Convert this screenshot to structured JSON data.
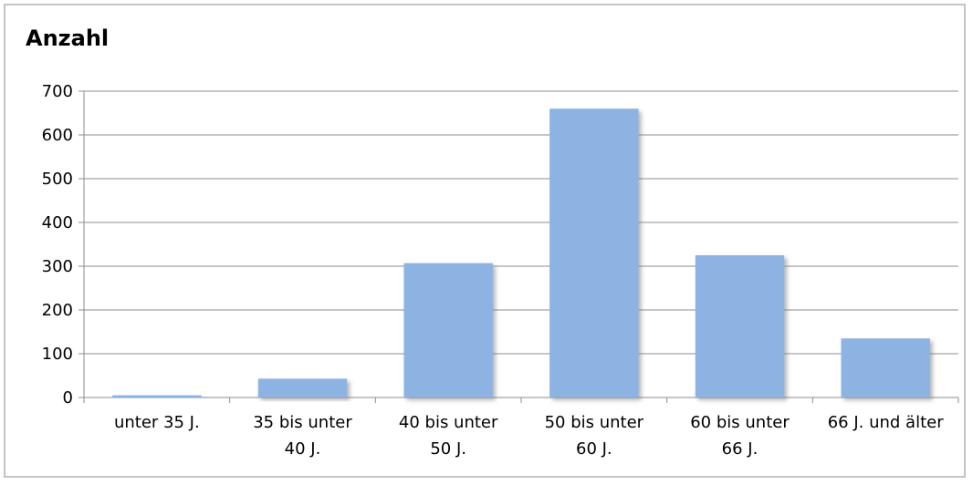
{
  "chart_data": {
    "type": "bar",
    "title": "Anzahl",
    "categories": [
      [
        "unter 35 J."
      ],
      [
        "35 bis unter",
        "40 J."
      ],
      [
        "40 bis unter",
        "50 J."
      ],
      [
        "50 bis unter",
        "60 J."
      ],
      [
        "60 bis unter",
        "66 J."
      ],
      [
        "66 J. und älter"
      ]
    ],
    "values": [
      5,
      43,
      307,
      660,
      325,
      135
    ],
    "ylim": [
      0,
      700
    ],
    "yticks": [
      0,
      100,
      200,
      300,
      400,
      500,
      600,
      700
    ],
    "grid": true,
    "legend": "none",
    "colors": {
      "bar": "#8db3e2",
      "grid": "#8c8c8c",
      "axis": "#8c8c8c",
      "shadow": "#9a9a9a"
    }
  }
}
